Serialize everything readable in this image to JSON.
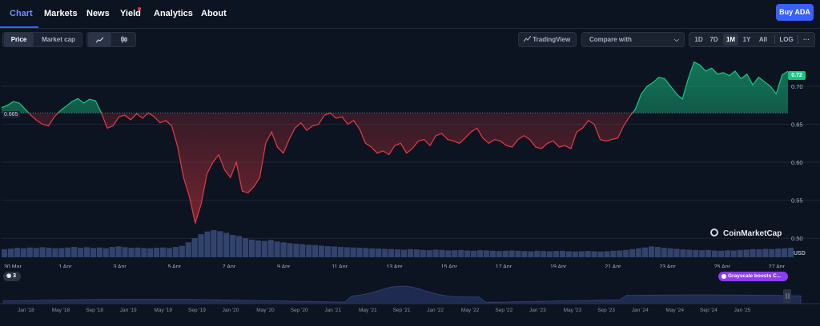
{
  "nav": {
    "tabs": [
      {
        "label": "Chart",
        "active": true
      },
      {
        "label": "Markets"
      },
      {
        "label": "News"
      },
      {
        "label": "Yield"
      },
      {
        "label": "Analytics"
      },
      {
        "label": "About"
      }
    ],
    "buy_label": "Buy ADA"
  },
  "toolbar": {
    "price_label": "Price",
    "market_cap_label": "Market cap",
    "line_icon": "line-chart-icon",
    "candle_icon": "candlestick-icon",
    "tradingview_label": "TradingView",
    "compare_label": "Compare with",
    "periods": [
      "1D",
      "7D",
      "1M",
      "1Y",
      "All"
    ],
    "active_period": "1M",
    "log_label": "LOG",
    "more_label": "···"
  },
  "chart_data": {
    "type": "line",
    "currency": "USD",
    "baseline": 0.665,
    "baseline_label": "0.665",
    "current_price_label": "0.72",
    "y_ticks": [
      "0.70",
      "0.65",
      "0.60",
      "0.55",
      "0.50"
    ],
    "ylim": [
      0.475,
      0.74
    ],
    "x_ticks": [
      "30 Mar",
      "1 Apr",
      "3 Apr",
      "5 Apr",
      "7 Apr",
      "9 Apr",
      "11 Apr",
      "13 Apr",
      "15 Apr",
      "17 Apr",
      "19 Apr",
      "21 Apr",
      "23 Apr",
      "25 Apr",
      "27 Apr"
    ],
    "price_series": [
      0.672,
      0.675,
      0.68,
      0.678,
      0.67,
      0.662,
      0.655,
      0.65,
      0.648,
      0.66,
      0.668,
      0.674,
      0.68,
      0.684,
      0.678,
      0.683,
      0.681,
      0.665,
      0.645,
      0.648,
      0.66,
      0.662,
      0.656,
      0.664,
      0.658,
      0.665,
      0.66,
      0.652,
      0.655,
      0.648,
      0.62,
      0.58,
      0.555,
      0.52,
      0.545,
      0.585,
      0.6,
      0.61,
      0.59,
      0.58,
      0.6,
      0.562,
      0.56,
      0.568,
      0.58,
      0.625,
      0.64,
      0.62,
      0.612,
      0.63,
      0.645,
      0.652,
      0.642,
      0.648,
      0.65,
      0.662,
      0.665,
      0.658,
      0.66,
      0.65,
      0.655,
      0.644,
      0.625,
      0.62,
      0.612,
      0.615,
      0.61,
      0.622,
      0.625,
      0.612,
      0.618,
      0.628,
      0.63,
      0.622,
      0.635,
      0.638,
      0.63,
      0.628,
      0.625,
      0.632,
      0.64,
      0.645,
      0.632,
      0.625,
      0.63,
      0.628,
      0.622,
      0.62,
      0.63,
      0.635,
      0.63,
      0.62,
      0.618,
      0.625,
      0.628,
      0.62,
      0.622,
      0.618,
      0.64,
      0.645,
      0.655,
      0.65,
      0.63,
      0.628,
      0.63,
      0.632,
      0.648,
      0.66,
      0.67,
      0.69,
      0.7,
      0.705,
      0.712,
      0.71,
      0.7,
      0.69,
      0.683,
      0.71,
      0.732,
      0.728,
      0.72,
      0.724,
      0.716,
      0.718,
      0.714,
      0.72,
      0.71,
      0.716,
      0.702,
      0.712,
      0.706,
      0.7,
      0.69,
      0.715,
      0.72
    ],
    "volume_series": [
      0.3,
      0.32,
      0.35,
      0.33,
      0.36,
      0.34,
      0.37,
      0.35,
      0.33,
      0.34,
      0.36,
      0.38,
      0.35,
      0.37,
      0.34,
      0.36,
      0.33,
      0.38,
      0.4,
      0.37,
      0.35,
      0.36,
      0.34,
      0.33,
      0.35,
      0.36,
      0.34,
      0.38,
      0.42,
      0.55,
      0.7,
      0.85,
      0.95,
      1.0,
      0.96,
      0.9,
      0.82,
      0.78,
      0.7,
      0.65,
      0.62,
      0.6,
      0.64,
      0.58,
      0.55,
      0.52,
      0.5,
      0.48,
      0.46,
      0.45,
      0.43,
      0.41,
      0.4,
      0.38,
      0.37,
      0.36,
      0.35,
      0.34,
      0.33,
      0.32,
      0.31,
      0.3,
      0.29,
      0.28,
      0.3,
      0.29,
      0.27,
      0.26,
      0.28,
      0.27,
      0.25,
      0.26,
      0.27,
      0.25,
      0.24,
      0.26,
      0.25,
      0.24,
      0.23,
      0.24,
      0.25,
      0.24,
      0.23,
      0.22,
      0.24,
      0.23,
      0.22,
      0.23,
      0.24,
      0.22,
      0.21,
      0.22,
      0.23,
      0.22,
      0.21,
      0.22,
      0.24,
      0.25,
      0.27,
      0.3,
      0.33,
      0.36,
      0.4,
      0.38,
      0.35,
      0.33,
      0.31,
      0.29,
      0.28,
      0.27,
      0.26,
      0.27,
      0.25,
      0.24,
      0.26,
      0.25,
      0.27,
      0.28,
      0.3,
      0.29,
      0.31,
      0.3,
      0.32,
      0.33,
      0.35
    ]
  },
  "watermark": {
    "label": "CoinMarketCap"
  },
  "overview": {
    "x_ticks": [
      "Jan '18",
      "May '18",
      "Sep '18",
      "Jan '19",
      "May '19",
      "Sep '19",
      "Jan '20",
      "May '20",
      "Sep '20",
      "Jan '21",
      "May '21",
      "Sep '21",
      "Jan '22",
      "May '22",
      "Sep '22",
      "Jan '23",
      "May '23",
      "Sep '23",
      "Jan '24",
      "May '24",
      "Sep '24",
      "Jan '25"
    ],
    "news_count": "3",
    "news_headline": "Grayscale boosts C..."
  },
  "colors": {
    "up": "#16c784",
    "down": "#ea3943",
    "accent": "#3861fb",
    "volume": "#3a4b7a"
  }
}
